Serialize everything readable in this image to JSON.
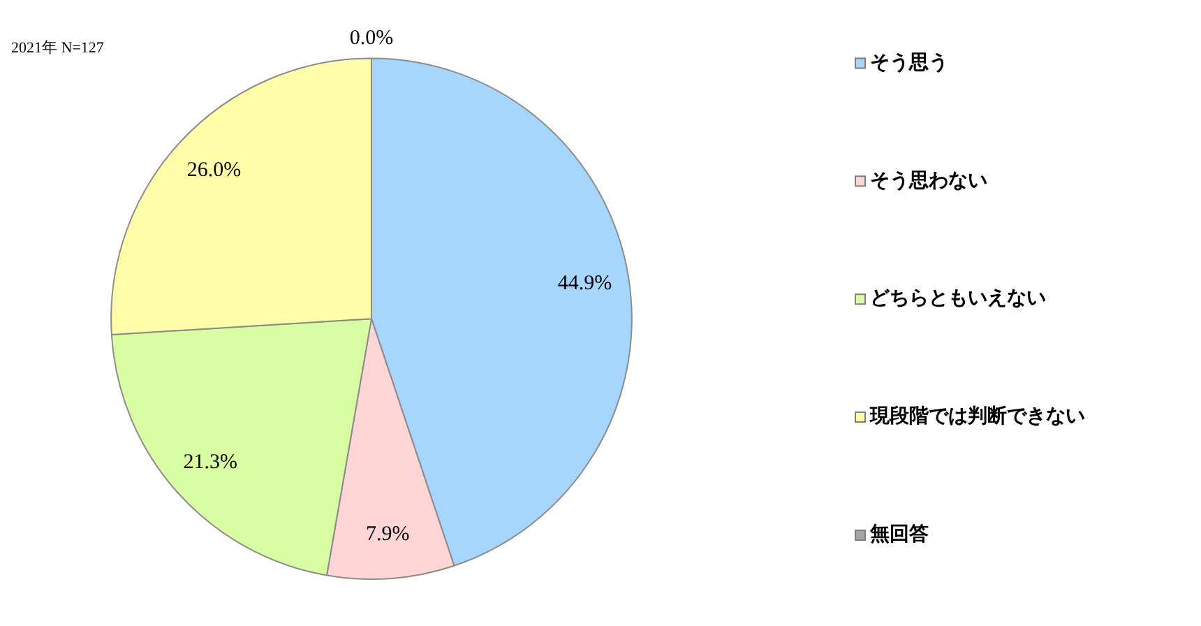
{
  "chart_data": {
    "type": "pie",
    "title": "2021年 N=127",
    "categories": [
      "そう思う",
      "そう思わない",
      "どちらともいえない",
      "現段階では判断できない",
      "無回答"
    ],
    "values": [
      44.9,
      7.9,
      21.3,
      26.0,
      0.0
    ],
    "colors": [
      "#a6d6fd",
      "#ffd5d5",
      "#d9fda2",
      "#fffda8",
      "#a6a6a6"
    ],
    "value_labels": [
      "44.9%",
      "7.9%",
      "21.3%",
      "26.0%",
      "0.0%"
    ],
    "legend": "right"
  }
}
